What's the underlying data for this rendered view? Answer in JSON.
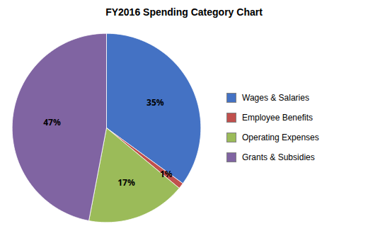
{
  "chart_data": {
    "type": "pie",
    "title": "FY2016 Spending Category Chart",
    "categories": [
      "Wages & Salaries",
      "Employee Benefits",
      "Operating Expenses",
      "Grants & Subsidies"
    ],
    "values": [
      35,
      1,
      17,
      47
    ],
    "value_labels": [
      "35%",
      "1%",
      "17%",
      "47%"
    ],
    "colors": [
      "#4472C4",
      "#C0504D",
      "#9BBB59",
      "#8064A2"
    ],
    "data_labels": true,
    "legend": "right"
  }
}
